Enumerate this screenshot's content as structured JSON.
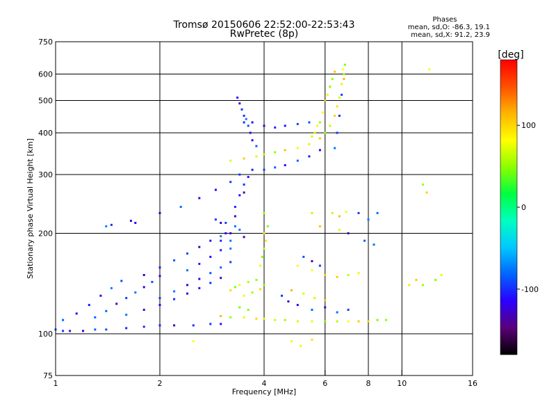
{
  "chart_data": {
    "type": "scatter",
    "title": "Tromsø 20150606 22:52:00-22:53:43",
    "subtitle": "RwPretec (8p)",
    "stats_title": "Phases",
    "stats_lines": [
      "mean, sd,O: -86.3, 19.1",
      "mean, sd,X:  91.2, 23.9"
    ],
    "xlabel": "Frequency [MHz]",
    "ylabel": "Stationary phase Virtual Height [km]",
    "x_scale": "log",
    "y_scale": "log",
    "xlim": [
      1,
      16
    ],
    "ylim": [
      75,
      750
    ],
    "x_ticks": [
      1,
      2,
      4,
      6,
      8,
      10,
      16
    ],
    "x_tick_labels": [
      "1",
      "2",
      "4",
      "6",
      "8",
      "10",
      "16"
    ],
    "y_ticks": [
      75,
      100,
      200,
      300,
      400,
      500,
      600,
      750
    ],
    "y_tick_labels": [
      "75",
      "100",
      "200",
      "300",
      "400",
      "500",
      "600",
      "750"
    ],
    "x_grid": [
      2,
      4,
      6,
      8,
      10
    ],
    "y_grid": [
      100,
      200,
      300,
      400,
      500,
      600
    ],
    "grid": true,
    "colorbar": {
      "label": "[deg]",
      "range": [
        -180,
        180
      ],
      "ticks": [
        100,
        0,
        -100
      ],
      "tick_labels": [
        "100",
        "0",
        "-100"
      ],
      "colors": [
        "#000000",
        "#5a007a",
        "#2a00ff",
        "#0064ff",
        "#00c8ff",
        "#00ffc0",
        "#00ff40",
        "#8cff00",
        "#ffff00",
        "#ffb400",
        "#ff5000",
        "#ff0000"
      ]
    },
    "series": [
      {
        "values": [
          [
            1.0,
            103
          ],
          [
            1.05,
            102
          ],
          [
            1.1,
            102
          ],
          [
            1.2,
            102
          ],
          [
            1.3,
            103
          ],
          [
            1.4,
            103
          ],
          [
            1.6,
            104
          ],
          [
            1.8,
            105
          ],
          [
            2.0,
            106
          ],
          [
            2.2,
            106
          ],
          [
            2.5,
            106
          ],
          [
            2.8,
            107
          ],
          [
            3.0,
            107
          ],
          [
            1.05,
            110
          ],
          [
            1.15,
            115
          ],
          [
            1.25,
            122
          ],
          [
            1.35,
            130
          ],
          [
            1.45,
            137
          ],
          [
            1.55,
            144
          ],
          [
            1.3,
            112
          ],
          [
            1.4,
            117
          ],
          [
            1.5,
            123
          ],
          [
            1.6,
            128
          ],
          [
            1.7,
            133
          ],
          [
            1.8,
            138
          ],
          [
            1.9,
            143
          ],
          [
            2.0,
            149
          ],
          [
            1.6,
            114
          ],
          [
            1.8,
            118
          ],
          [
            2.0,
            122
          ],
          [
            2.2,
            127
          ],
          [
            2.4,
            132
          ],
          [
            2.6,
            137
          ],
          [
            2.8,
            142
          ],
          [
            3.0,
            147
          ],
          [
            2.0,
            128
          ],
          [
            2.2,
            134
          ],
          [
            2.4,
            140
          ],
          [
            2.6,
            146
          ],
          [
            2.8,
            152
          ],
          [
            3.0,
            158
          ],
          [
            3.2,
            164
          ],
          [
            1.8,
            150
          ],
          [
            2.0,
            158
          ],
          [
            2.2,
            166
          ],
          [
            2.4,
            174
          ],
          [
            2.6,
            182
          ],
          [
            2.8,
            190
          ],
          [
            3.0,
            196
          ],
          [
            2.4,
            155
          ],
          [
            2.6,
            162
          ],
          [
            2.8,
            170
          ],
          [
            3.0,
            178
          ],
          [
            2.0,
            230
          ],
          [
            2.3,
            240
          ],
          [
            2.6,
            255
          ],
          [
            2.9,
            270
          ],
          [
            3.2,
            285
          ],
          [
            3.4,
            300
          ],
          [
            3.0,
            190
          ],
          [
            3.2,
            200
          ],
          [
            3.3,
            210
          ],
          [
            3.4,
            205
          ],
          [
            3.5,
            195
          ],
          [
            3.1,
            215
          ],
          [
            3.3,
            225
          ],
          [
            3.2,
            180
          ],
          [
            3.3,
            240
          ],
          [
            3.4,
            260
          ],
          [
            3.5,
            280
          ],
          [
            3.6,
            295
          ],
          [
            3.7,
            310
          ],
          [
            3.5,
            265
          ],
          [
            3.6,
            420
          ],
          [
            3.65,
            400
          ],
          [
            3.7,
            380
          ],
          [
            3.8,
            365
          ],
          [
            3.55,
            440
          ],
          [
            3.7,
            430
          ],
          [
            4.0,
            420
          ],
          [
            4.3,
            415
          ],
          [
            4.6,
            420
          ],
          [
            5.0,
            425
          ],
          [
            5.4,
            430
          ],
          [
            3.5,
            450
          ],
          [
            3.45,
            470
          ],
          [
            3.4,
            490
          ],
          [
            3.35,
            510
          ],
          [
            3.5,
            430
          ],
          [
            3.0,
            215
          ],
          [
            3.1,
            200
          ],
          [
            3.2,
            190
          ],
          [
            2.9,
            220
          ],
          [
            4.0,
            310
          ],
          [
            4.3,
            315
          ],
          [
            4.6,
            320
          ],
          [
            5.0,
            330
          ],
          [
            5.4,
            340
          ],
          [
            5.8,
            355
          ],
          [
            4.5,
            130
          ],
          [
            4.7,
            125
          ],
          [
            5.0,
            122
          ],
          [
            5.5,
            118
          ],
          [
            6.0,
            120
          ],
          [
            6.5,
            116
          ],
          [
            7.0,
            118
          ],
          [
            5.2,
            170
          ],
          [
            5.5,
            165
          ],
          [
            5.8,
            160
          ],
          [
            6.4,
            360
          ],
          [
            6.5,
            400
          ],
          [
            6.6,
            450
          ],
          [
            6.7,
            520
          ],
          [
            7.5,
            230
          ],
          [
            8.0,
            220
          ],
          [
            8.5,
            230
          ],
          [
            7.0,
            200
          ],
          [
            7.8,
            190
          ],
          [
            8.3,
            185
          ],
          [
            1.7,
            215
          ],
          [
            1.65,
            218
          ],
          [
            1.4,
            210
          ],
          [
            1.45,
            212
          ]
        ]
      },
      {
        "values": [
          [
            3.0,
            113
          ],
          [
            3.2,
            112
          ],
          [
            3.5,
            112
          ],
          [
            3.8,
            111
          ],
          [
            4.0,
            111
          ],
          [
            4.3,
            110
          ],
          [
            4.6,
            110
          ],
          [
            5.0,
            109
          ],
          [
            5.5,
            109
          ],
          [
            6.0,
            109
          ],
          [
            6.5,
            109
          ],
          [
            7.0,
            109
          ],
          [
            7.5,
            109
          ],
          [
            8.0,
            109
          ],
          [
            8.5,
            110
          ],
          [
            9.0,
            110
          ],
          [
            3.2,
            135
          ],
          [
            3.4,
            140
          ],
          [
            3.6,
            143
          ],
          [
            3.8,
            145
          ],
          [
            4.0,
            140
          ],
          [
            3.3,
            138
          ],
          [
            3.5,
            130
          ],
          [
            3.7,
            133
          ],
          [
            3.9,
            136
          ],
          [
            4.0,
            200
          ],
          [
            4.0,
            180
          ],
          [
            3.95,
            170
          ],
          [
            4.05,
            190
          ],
          [
            3.9,
            160
          ],
          [
            4.1,
            210
          ],
          [
            4.0,
            230
          ],
          [
            3.2,
            330
          ],
          [
            3.5,
            335
          ],
          [
            3.8,
            340
          ],
          [
            4.0,
            345
          ],
          [
            4.3,
            350
          ],
          [
            4.6,
            355
          ],
          [
            5.0,
            360
          ],
          [
            5.4,
            370
          ],
          [
            5.8,
            385
          ],
          [
            6.0,
            400
          ],
          [
            6.2,
            420
          ],
          [
            6.4,
            450
          ],
          [
            6.5,
            480
          ],
          [
            6.6,
            510
          ],
          [
            6.7,
            560
          ],
          [
            6.8,
            600
          ],
          [
            6.85,
            640
          ],
          [
            6.75,
            620
          ],
          [
            6.8,
            580
          ],
          [
            5.8,
            430
          ],
          [
            5.9,
            460
          ],
          [
            6.0,
            500
          ],
          [
            6.1,
            520
          ],
          [
            6.2,
            550
          ],
          [
            6.3,
            580
          ],
          [
            6.4,
            610
          ],
          [
            5.6,
            400
          ],
          [
            5.7,
            420
          ],
          [
            5.5,
            390
          ],
          [
            5.0,
            160
          ],
          [
            5.5,
            155
          ],
          [
            6.0,
            150
          ],
          [
            6.5,
            148
          ],
          [
            7.0,
            150
          ],
          [
            7.5,
            152
          ],
          [
            4.8,
            135
          ],
          [
            5.2,
            132
          ],
          [
            5.6,
            128
          ],
          [
            6.0,
            126
          ],
          [
            5.5,
            230
          ],
          [
            6.3,
            230
          ],
          [
            6.6,
            225
          ],
          [
            6.9,
            232
          ],
          [
            10.5,
            140
          ],
          [
            11.0,
            145
          ],
          [
            11.5,
            140
          ],
          [
            12.5,
            145
          ],
          [
            13.0,
            150
          ],
          [
            11.5,
            280
          ],
          [
            11.8,
            265
          ],
          [
            12.0,
            620
          ],
          [
            2.5,
            95
          ],
          [
            4.8,
            95
          ],
          [
            5.1,
            92
          ],
          [
            5.5,
            96
          ],
          [
            5.8,
            210
          ],
          [
            6.6,
            205
          ],
          [
            3.4,
            120
          ],
          [
            3.6,
            118
          ]
        ]
      }
    ]
  }
}
